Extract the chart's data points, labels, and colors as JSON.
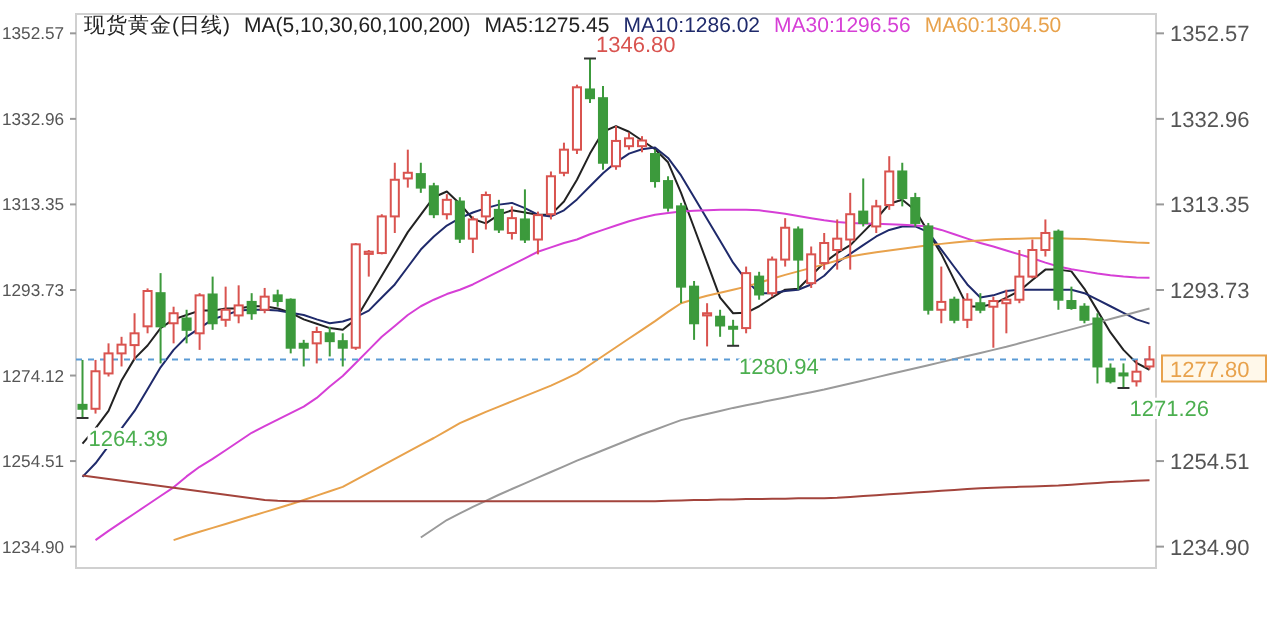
{
  "chart_data": {
    "type": "candlestick",
    "title": "现货黄金(日线)",
    "subtitle": "MA(5,10,30,60,100,200)",
    "legend": "top",
    "tick_labels": "y",
    "categories": [
      null,
      null,
      null,
      null,
      null,
      null,
      null,
      null,
      null,
      null,
      null,
      null,
      null,
      null,
      null,
      null,
      null,
      null,
      null,
      null,
      null,
      null,
      null,
      null,
      null,
      null,
      null,
      null,
      null,
      null,
      null,
      null,
      null,
      null,
      null,
      null,
      null,
      null,
      null,
      null,
      null,
      null,
      null,
      null,
      null,
      null,
      null,
      null,
      null,
      null,
      null,
      null,
      null,
      null,
      null,
      null,
      null,
      null,
      null,
      null,
      null,
      null,
      null,
      null,
      null,
      null,
      null,
      null,
      null,
      null,
      null,
      null,
      null,
      null,
      null,
      null,
      null,
      null,
      null,
      null,
      null,
      null,
      null
    ],
    "ylim": [
      1230,
      1357
    ],
    "yticks": [
      {
        "value": 1234.9,
        "label": "1234.90"
      },
      1254.51,
      1274.12,
      1293.73,
      1313.35,
      1332.96,
      1352.57
    ],
    "y2lim": [
      1230,
      1357
    ],
    "y2ticks": [
      {
        "value": 1234.9,
        "label": "1234.90"
      },
      1254.51,
      1293.73,
      1313.35,
      1332.96,
      1352.57
    ],
    "ohlc": [
      [
        1267.4,
        1277.7,
        1264.39,
        1266.5
      ],
      [
        1266.5,
        1277.7,
        1265.4,
        1275.1
      ],
      [
        1274.6,
        1281.5,
        1273.9,
        1279.2
      ],
      [
        1279.2,
        1283.0,
        1276.2,
        1281.2
      ],
      [
        1281.1,
        1288.4,
        1277.7,
        1283.8
      ],
      [
        1285.4,
        1294.1,
        1283.8,
        1293.5
      ],
      [
        1293.0,
        1297.6,
        1276.9,
        1285.4
      ],
      [
        1286.1,
        1289.9,
        1281.5,
        1288.4
      ],
      [
        1287.2,
        1289.2,
        1281.5,
        1284.6
      ],
      [
        1283.8,
        1293.0,
        1280.0,
        1292.5
      ],
      [
        1292.7,
        1296.8,
        1284.6,
        1286.1
      ],
      [
        1286.9,
        1294.5,
        1285.3,
        1289.2
      ],
      [
        1287.9,
        1294.8,
        1286.1,
        1290.2
      ],
      [
        1291.0,
        1293.0,
        1286.9,
        1288.4
      ],
      [
        1289.2,
        1294.2,
        1288.4,
        1292.2
      ],
      [
        1292.5,
        1293.8,
        1289.9,
        1291.2
      ],
      [
        1291.5,
        1291.8,
        1279.2,
        1280.5
      ],
      [
        1281.4,
        1282.3,
        1276.2,
        1280.5
      ],
      [
        1281.5,
        1285.3,
        1276.9,
        1284.1
      ],
      [
        1283.8,
        1285.3,
        1278.5,
        1282.0
      ],
      [
        1282.0,
        1283.8,
        1276.2,
        1280.5
      ],
      [
        1280.5,
        1304.5,
        1280.0,
        1304.2
      ],
      [
        1302.0,
        1302.9,
        1296.8,
        1302.5
      ],
      [
        1302.2,
        1311.1,
        1301.9,
        1310.6
      ],
      [
        1310.6,
        1322.9,
        1306.8,
        1319.0
      ],
      [
        1319.3,
        1325.9,
        1317.2,
        1320.6
      ],
      [
        1320.3,
        1322.9,
        1316.0,
        1317.2
      ],
      [
        1317.5,
        1318.3,
        1310.2,
        1311.1
      ],
      [
        1311.1,
        1315.7,
        1309.9,
        1314.4
      ],
      [
        1314.0,
        1315.0,
        1304.5,
        1305.5
      ],
      [
        1305.5,
        1310.6,
        1302.2,
        1309.9
      ],
      [
        1310.6,
        1316.3,
        1307.6,
        1315.5
      ],
      [
        1312.1,
        1314.4,
        1306.8,
        1307.6
      ],
      [
        1306.8,
        1312.9,
        1305.3,
        1310.2
      ],
      [
        1309.9,
        1316.8,
        1304.5,
        1305.3
      ],
      [
        1305.3,
        1311.7,
        1301.9,
        1310.9
      ],
      [
        1311.1,
        1320.9,
        1309.9,
        1319.8
      ],
      [
        1320.6,
        1327.5,
        1319.8,
        1325.9
      ],
      [
        1325.9,
        1340.8,
        1324.9,
        1340.2
      ],
      [
        1339.7,
        1346.8,
        1336.6,
        1337.7
      ],
      [
        1337.7,
        1340.5,
        1321.3,
        1322.9
      ],
      [
        1322.1,
        1331.3,
        1321.3,
        1327.9
      ],
      [
        1326.7,
        1329.8,
        1325.9,
        1328.5
      ],
      [
        1326.7,
        1329.0,
        1325.3,
        1328.0
      ],
      [
        1324.9,
        1325.9,
        1317.2,
        1318.7
      ],
      [
        1318.7,
        1319.8,
        1311.7,
        1312.6
      ],
      [
        1312.9,
        1313.7,
        1290.7,
        1294.5
      ],
      [
        1294.5,
        1295.8,
        1282.3,
        1286.1
      ],
      [
        1287.9,
        1290.7,
        1280.8,
        1288.4
      ],
      [
        1287.6,
        1289.2,
        1283.0,
        1285.6
      ],
      [
        1285.3,
        1286.9,
        1280.94,
        1285.0
      ],
      [
        1285.0,
        1299.1,
        1283.8,
        1297.6
      ],
      [
        1296.8,
        1297.9,
        1291.5,
        1292.7
      ],
      [
        1293.0,
        1301.4,
        1292.2,
        1300.7
      ],
      [
        1300.7,
        1310.2,
        1299.1,
        1308.0
      ],
      [
        1307.6,
        1308.3,
        1293.8,
        1300.7
      ],
      [
        1295.3,
        1303.7,
        1294.2,
        1301.9
      ],
      [
        1299.9,
        1306.8,
        1298.4,
        1304.5
      ],
      [
        1302.9,
        1309.9,
        1298.4,
        1305.5
      ],
      [
        1305.3,
        1316.0,
        1298.4,
        1311.1
      ],
      [
        1311.7,
        1319.3,
        1308.3,
        1309.1
      ],
      [
        1308.3,
        1314.4,
        1306.8,
        1312.9
      ],
      [
        1313.2,
        1324.4,
        1312.1,
        1320.9
      ],
      [
        1320.9,
        1322.9,
        1312.9,
        1314.8
      ],
      [
        1314.8,
        1316.0,
        1308.3,
        1309.1
      ],
      [
        1308.3,
        1309.1,
        1288.1,
        1289.2
      ],
      [
        1289.2,
        1299.1,
        1286.1,
        1291.0
      ],
      [
        1291.5,
        1292.2,
        1286.1,
        1286.9
      ],
      [
        1286.9,
        1293.0,
        1285.0,
        1291.5
      ],
      [
        1290.7,
        1293.0,
        1288.4,
        1289.2
      ],
      [
        1289.9,
        1292.2,
        1280.5,
        1291.2
      ],
      [
        1290.7,
        1293.8,
        1283.8,
        1291.5
      ],
      [
        1291.5,
        1302.9,
        1290.7,
        1296.8
      ],
      [
        1296.8,
        1305.3,
        1296.4,
        1302.9
      ],
      [
        1302.9,
        1309.9,
        1301.4,
        1306.8
      ],
      [
        1307.1,
        1307.6,
        1289.2,
        1291.5
      ],
      [
        1291.2,
        1294.5,
        1289.2,
        1289.6
      ],
      [
        1289.9,
        1290.7,
        1286.1,
        1286.9
      ],
      [
        1287.2,
        1288.4,
        1272.3,
        1276.2
      ],
      [
        1275.7,
        1276.9,
        1272.3,
        1272.8
      ],
      [
        1274.6,
        1276.9,
        1271.26,
        1274.3
      ],
      [
        1272.8,
        1277.7,
        1271.6,
        1275.0
      ],
      [
        1276.2,
        1280.9,
        1275.5,
        1277.8
      ]
    ],
    "colors": [
      "#3c9a3c",
      "#d9534f",
      "#d9534f",
      "#d9534f",
      "#d9534f",
      "#d9534f",
      "#3c9a3c",
      "#d9534f",
      "#3c9a3c",
      "#d9534f",
      "#3c9a3c",
      "#d9534f",
      "#d9534f",
      "#3c9a3c",
      "#d9534f",
      "#3c9a3c",
      "#3c9a3c",
      "#3c9a3c",
      "#d9534f",
      "#3c9a3c",
      "#3c9a3c",
      "#d9534f",
      "#d9534f",
      "#d9534f",
      "#d9534f",
      "#d9534f",
      "#3c9a3c",
      "#3c9a3c",
      "#d9534f",
      "#3c9a3c",
      "#d9534f",
      "#d9534f",
      "#3c9a3c",
      "#d9534f",
      "#3c9a3c",
      "#d9534f",
      "#d9534f",
      "#d9534f",
      "#d9534f",
      "#3c9a3c",
      "#3c9a3c",
      "#d9534f",
      "#d9534f",
      "#d9534f",
      "#3c9a3c",
      "#3c9a3c",
      "#3c9a3c",
      "#3c9a3c",
      "#d9534f",
      "#3c9a3c",
      "#3c9a3c",
      "#d9534f",
      "#3c9a3c",
      "#d9534f",
      "#d9534f",
      "#3c9a3c",
      "#d9534f",
      "#d9534f",
      "#d9534f",
      "#d9534f",
      "#3c9a3c",
      "#d9534f",
      "#d9534f",
      "#3c9a3c",
      "#3c9a3c",
      "#3c9a3c",
      "#d9534f",
      "#3c9a3c",
      "#d9534f",
      "#3c9a3c",
      "#d9534f",
      "#d9534f",
      "#d9534f",
      "#d9534f",
      "#d9534f",
      "#3c9a3c",
      "#3c9a3c",
      "#3c9a3c",
      "#3c9a3c",
      "#3c9a3c",
      "#3c9a3c",
      "#d9534f",
      "#d9534f"
    ],
    "series": [
      {
        "type": "line",
        "name": "MA5:1275.45",
        "color": "#222222",
        "values": [
          1258.5,
          1262,
          1266,
          1273,
          1278,
          1281,
          1285,
          1287,
          1288,
          1289,
          1289,
          1289.5,
          1289.5,
          1290,
          1290,
          1289.5,
          1288.5,
          1287,
          1286,
          1285,
          1284.6,
          1287,
          1292,
          1297,
          1302,
          1307,
          1311,
          1315,
          1316.3,
          1313.5,
          1310,
          1309,
          1311,
          1312,
          1311.5,
          1311,
          1311,
          1314,
          1319,
          1325,
          1330,
          1331.3,
          1330,
          1328,
          1326,
          1323,
          1316,
          1308,
          1300,
          1292,
          1288.4,
          1288.5,
          1290,
          1292,
          1293.8,
          1294,
          1297,
          1300,
          1302.2,
          1304,
          1307,
          1310,
          1313.5,
          1314.4,
          1312,
          1307,
          1302,
          1296,
          1290,
          1289.9,
          1290.5,
          1292,
          1293.5,
          1296,
          1298.4,
          1298.4,
          1298,
          1294,
          1289,
          1284,
          1280,
          1277,
          1275.45
        ]
      },
      {
        "type": "line",
        "name": "MA10:1286.02",
        "color": "#1f2a6b",
        "values": [
          1250.9,
          1254,
          1258,
          1262,
          1266,
          1271,
          1276,
          1280,
          1283,
          1285,
          1287,
          1288,
          1289,
          1289.2,
          1289.2,
          1289,
          1288.5,
          1288,
          1287,
          1286.1,
          1286.5,
          1287.5,
          1289,
          1292,
          1295,
          1299,
          1303,
          1306,
          1308.5,
          1310.2,
          1311.5,
          1312.5,
          1313.3,
          1313.7,
          1312.5,
          1311,
          1310.6,
          1312,
          1314.5,
          1317.5,
          1320.5,
          1323,
          1325,
          1326,
          1326.4,
          1324,
          1320,
          1315,
          1310,
          1305,
          1300,
          1296,
          1293,
          1293,
          1293.5,
          1293.8,
          1295,
          1297,
          1300,
          1302,
          1304,
          1306,
          1307.5,
          1308.3,
          1308.3,
          1307,
          1303,
          1299,
          1295,
          1292,
          1292.5,
          1293.5,
          1293.8,
          1293.8,
          1293.8,
          1293.8,
          1293.8,
          1293,
          1291.5,
          1290,
          1288.5,
          1287,
          1286.02
        ]
      },
      {
        "type": "line",
        "name": "MA30:1296.56",
        "color": "#d63fd6",
        "values": [
          null,
          1236.4,
          1238.5,
          1240.5,
          1242.5,
          1244.5,
          1246.5,
          1248.5,
          1251,
          1253.2,
          1255,
          1257,
          1259,
          1261,
          1262.5,
          1264,
          1265.5,
          1267,
          1269,
          1271.6,
          1274,
          1277,
          1280,
          1283,
          1285.5,
          1288,
          1290,
          1291.5,
          1292.8,
          1293.8,
          1295,
          1296.5,
          1298,
          1299.5,
          1301,
          1302.5,
          1303.5,
          1304.5,
          1305.3,
          1306.5,
          1307.5,
          1308.5,
          1309.5,
          1310.3,
          1311,
          1311.4,
          1311.7,
          1311.9,
          1312,
          1312.1,
          1312.1,
          1312.1,
          1312,
          1311.6,
          1311.2,
          1310.7,
          1310.2,
          1309.7,
          1309.3,
          1309.1,
          1309,
          1308.9,
          1308.8,
          1308.7,
          1308.5,
          1308.3,
          1307.5,
          1306.5,
          1305.5,
          1304.5,
          1303.7,
          1302.8,
          1301.9,
          1301,
          1300,
          1299.1,
          1298.5,
          1298,
          1297.5,
          1297.1,
          1296.8,
          1296.6,
          1296.56
        ]
      },
      {
        "type": "line",
        "name": "MA60:1304.50",
        "color": "#e8a24c",
        "values": [
          null,
          null,
          null,
          null,
          null,
          null,
          null,
          1236.4,
          1237.4,
          1238.3,
          1239.2,
          1240.1,
          1241,
          1241.9,
          1242.8,
          1243.7,
          1244.6,
          1245.6,
          1246.6,
          1247.6,
          1248.6,
          1250.2,
          1251.8,
          1253.4,
          1255,
          1256.6,
          1258.2,
          1259.8,
          1261.5,
          1263.2,
          1264.5,
          1265.8,
          1267,
          1268.2,
          1269.4,
          1270.6,
          1271.8,
          1273.2,
          1274.6,
          1276.6,
          1278.6,
          1280.6,
          1282.6,
          1284.6,
          1286.6,
          1288.7,
          1290.7,
          1291.6,
          1292.4,
          1293.1,
          1293.8,
          1294.5,
          1295.4,
          1296.3,
          1297.2,
          1298,
          1298.8,
          1299.6,
          1300.5,
          1301.4,
          1301.9,
          1302.4,
          1302.8,
          1303.2,
          1303.6,
          1304,
          1304.3,
          1304.6,
          1304.9,
          1305.1,
          1305.3,
          1305.4,
          1305.5,
          1305.6,
          1305.6,
          1305.6,
          1305.5,
          1305.4,
          1305.2,
          1305,
          1304.8,
          1304.6,
          1304.5
        ]
      },
      {
        "type": "line",
        "color": "#9a9a9a",
        "values": [
          null,
          null,
          null,
          null,
          null,
          null,
          null,
          null,
          null,
          null,
          null,
          null,
          null,
          null,
          null,
          null,
          null,
          null,
          null,
          null,
          null,
          null,
          null,
          null,
          null,
          null,
          1237,
          1239,
          1241,
          1242.5,
          1244,
          1245.4,
          1246.8,
          1248.1,
          1249.4,
          1250.7,
          1252,
          1253.3,
          1254.6,
          1255.8,
          1257,
          1258.2,
          1259.4,
          1260.6,
          1261.7,
          1262.8,
          1263.9,
          1264.6,
          1265.3,
          1266,
          1266.7,
          1267.3,
          1267.9,
          1268.5,
          1269.1,
          1269.7,
          1270.3,
          1270.9,
          1271.6,
          1272.3,
          1273,
          1273.7,
          1274.4,
          1275.1,
          1275.8,
          1276.5,
          1277.2,
          1277.9,
          1278.6,
          1279.3,
          1280,
          1280.7,
          1281.5,
          1282.3,
          1283.1,
          1283.9,
          1284.7,
          1285.5,
          1286.3,
          1287.1,
          1287.9,
          1288.7,
          1289.5
        ]
      },
      {
        "type": "line",
        "color": "#a3443c",
        "values": [
          1251.2,
          1250.8,
          1250.4,
          1250,
          1249.6,
          1249.2,
          1248.8,
          1248.4,
          1248,
          1247.6,
          1247.2,
          1246.8,
          1246.4,
          1246,
          1245.6,
          1245.4,
          1245.3,
          1245.3,
          1245.3,
          1245.3,
          1245.3,
          1245.3,
          1245.3,
          1245.3,
          1245.3,
          1245.3,
          1245.3,
          1245.3,
          1245.3,
          1245.3,
          1245.3,
          1245.3,
          1245.3,
          1245.3,
          1245.3,
          1245.3,
          1245.3,
          1245.3,
          1245.3,
          1245.3,
          1245.3,
          1245.3,
          1245.3,
          1245.3,
          1245.3,
          1245.4,
          1245.5,
          1245.6,
          1245.6,
          1245.7,
          1245.7,
          1245.8,
          1245.8,
          1245.9,
          1245.9,
          1246,
          1246,
          1246,
          1246.1,
          1246.3,
          1246.5,
          1246.7,
          1246.9,
          1247.1,
          1247.3,
          1247.5,
          1247.7,
          1247.9,
          1248.1,
          1248.3,
          1248.4,
          1248.5,
          1248.6,
          1248.7,
          1248.8,
          1248.9,
          1249.1,
          1249.3,
          1249.5,
          1249.7,
          1249.8,
          1250,
          1250.1
        ]
      }
    ],
    "ref_lines": [
      {
        "axis": "y2",
        "value": 1277.8,
        "label": "1277.80",
        "color": "#5b9bd5",
        "line_style": "dashed"
      }
    ],
    "annotations": [
      "1346.80",
      "1264.39",
      "1280.94",
      "1271.26"
    ]
  }
}
